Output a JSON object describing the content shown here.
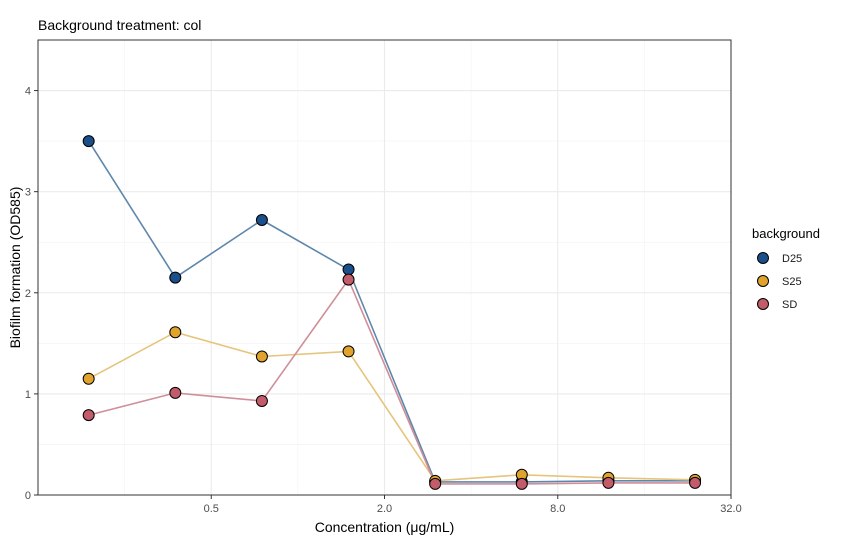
{
  "chart_data": {
    "type": "line",
    "title": "Background treatment: col",
    "xlabel": "Concentration (μg/mL)",
    "ylabel": "Biofilm formation (OD585)",
    "x_scale": "log2",
    "x_ticks": [
      0.5,
      2.0,
      8.0,
      32.0
    ],
    "x_tick_labels": [
      "0.5",
      "2.0",
      "8.0",
      "32.0"
    ],
    "y_ticks": [
      0,
      1,
      2,
      3,
      4
    ],
    "y_tick_labels": [
      "0",
      "1",
      "2",
      "3",
      "4"
    ],
    "xlim": [
      0.125,
      32
    ],
    "ylim": [
      0,
      4.5
    ],
    "grid": true,
    "legend": {
      "title": "background",
      "position": "right"
    },
    "x": [
      0.1875,
      0.375,
      0.75,
      1.5,
      3,
      6,
      12,
      24
    ],
    "series": [
      {
        "name": "D25",
        "color": "#1a4f8a",
        "line_color": "#5f87ac",
        "values": [
          3.5,
          2.15,
          2.72,
          2.23,
          0.13,
          0.13,
          0.14,
          0.14
        ]
      },
      {
        "name": "S25",
        "color": "#e0a42e",
        "line_color": "#e5c47c",
        "values": [
          1.15,
          1.61,
          1.37,
          1.42,
          0.14,
          0.2,
          0.17,
          0.15
        ]
      },
      {
        "name": "SD",
        "color": "#c25b6a",
        "line_color": "#cf8f99",
        "values": [
          0.79,
          1.01,
          0.93,
          2.13,
          0.11,
          0.11,
          0.12,
          0.12
        ]
      }
    ]
  }
}
